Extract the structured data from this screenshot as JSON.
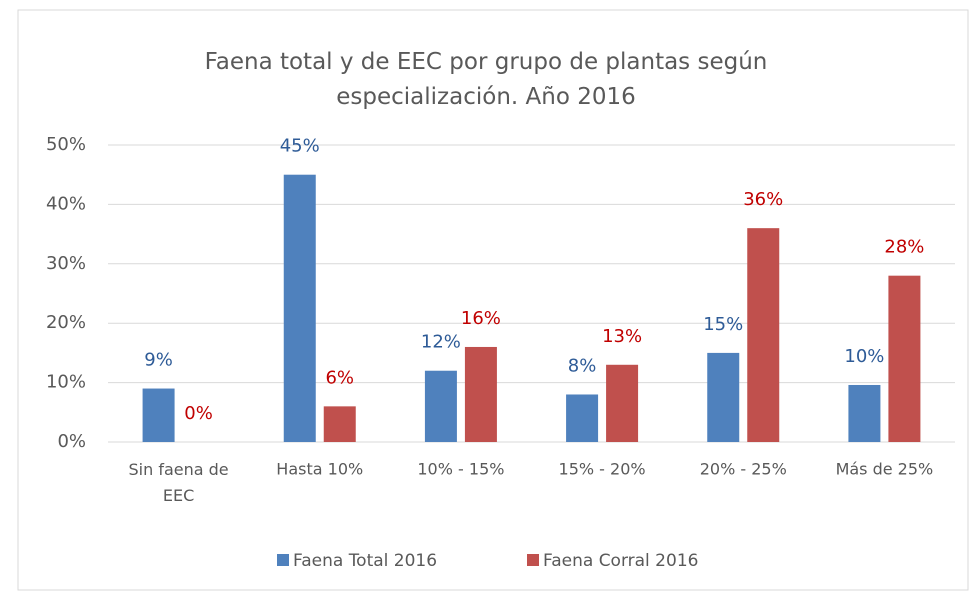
{
  "chart_data": {
    "type": "bar",
    "title": "Faena total y de EEC por grupo de plantas según especialización. Año 2016",
    "categories": [
      "Sin faena de EEC",
      "Hasta 10%",
      "10% - 15%",
      "15% - 20%",
      "20% - 25%",
      "Más de 25%"
    ],
    "series": [
      {
        "name": "Faena Total 2016",
        "color": "#4f81bd",
        "values": [
          9,
          45,
          12,
          8,
          15,
          9.6
        ],
        "value_labels": [
          "9%",
          "45%",
          "12%",
          "8%",
          "15%",
          "10%"
        ]
      },
      {
        "name": "Faena Corral 2016",
        "color": "#c0504d",
        "values": [
          0,
          6,
          16,
          13,
          36,
          28
        ],
        "value_labels": [
          "0%",
          "6%",
          "16%",
          "13%",
          "36%",
          "28%"
        ]
      }
    ],
    "ylim": [
      0,
      50
    ],
    "yticks": [
      {
        "value": 0,
        "label": "0%"
      },
      {
        "value": 10,
        "label": "10%"
      },
      {
        "value": 20,
        "label": "20%"
      },
      {
        "value": 30,
        "label": "30%"
      },
      {
        "value": 40,
        "label": "40%"
      },
      {
        "value": 50,
        "label": "50%"
      }
    ],
    "grid": true,
    "legend": "bottom"
  }
}
